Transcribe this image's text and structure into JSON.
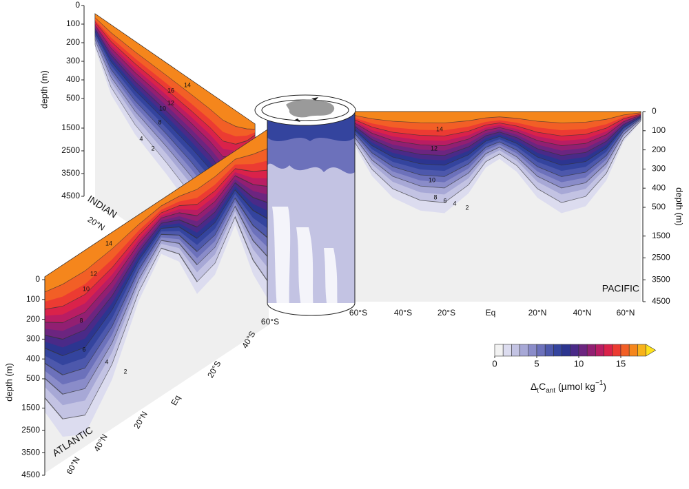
{
  "chart_data": {
    "type": "section",
    "colorbar": {
      "lim": [
        0,
        18
      ],
      "ticks": [
        0,
        5,
        10,
        15
      ],
      "colors": [
        "#f2f2f2",
        "#dcdcef",
        "#c3c3e3",
        "#a7a8d6",
        "#8a8cc9",
        "#6c71bb",
        "#4d58ac",
        "#34449e",
        "#2c3590",
        "#4a2a88",
        "#6c2580",
        "#921f72",
        "#b91d63",
        "#da224a",
        "#ec3b32",
        "#f25f26",
        "#f5861c",
        "#f8b21a"
      ],
      "extend_color": "#ffe21c",
      "label": [
        {
          "text": "Δ"
        },
        {
          "text": "t",
          "sub": true
        },
        {
          "text": "C"
        },
        {
          "text": "ant",
          "sub": true
        },
        {
          "text": " (µmol kg"
        },
        {
          "text": "−1",
          "sup": true
        },
        {
          "text": ")"
        }
      ]
    },
    "panels": [
      {
        "name": "PACIFIC",
        "ylabel": "depth (m)",
        "yticks": [
          0,
          100,
          200,
          300,
          400,
          500,
          1500,
          2500,
          3500,
          4500
        ],
        "xticks": [
          "60°S",
          "40°S",
          "20°S",
          "Eq",
          "20°N",
          "40°N",
          "60°N"
        ],
        "contour_labels": [
          "14",
          "12",
          "10",
          "8",
          "6",
          "4",
          "2"
        ]
      },
      {
        "name": "INDIAN",
        "ylabel": "depth (m)",
        "yticks": [
          0,
          100,
          200,
          300,
          400,
          500,
          1500,
          2500,
          3500,
          4500
        ],
        "xticks": [
          "20°N"
        ],
        "contour_labels": [
          "14",
          "16",
          "12",
          "10",
          "8",
          "4",
          "2"
        ]
      },
      {
        "name": "ATLANTIC",
        "ylabel": "depth (m)",
        "yticks": [
          0,
          100,
          200,
          300,
          400,
          500,
          1500,
          2500,
          3500,
          4500
        ],
        "xticks": [
          "60°S",
          "40°S",
          "20°S",
          "Eq",
          "20°N",
          "40°N",
          "60°N"
        ],
        "contour_labels": [
          "14",
          "12",
          "10",
          "8",
          "6",
          "4",
          "2"
        ]
      }
    ]
  }
}
